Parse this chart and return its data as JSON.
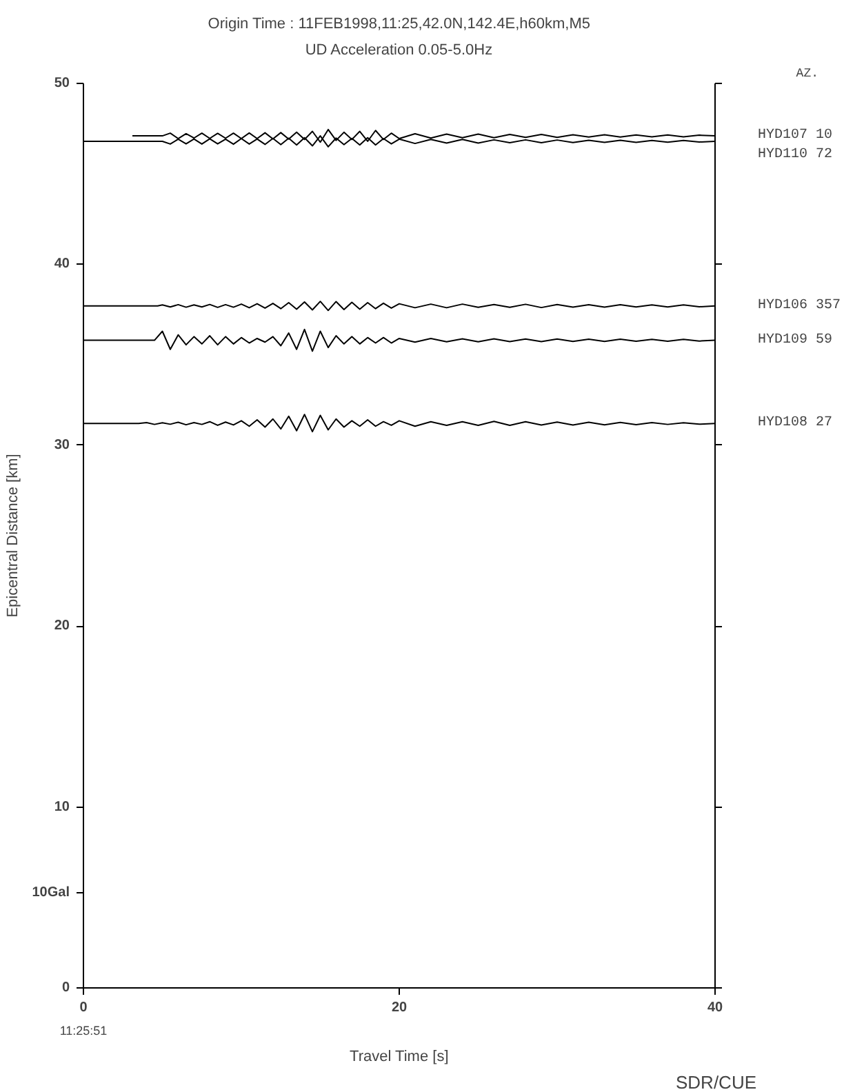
{
  "chart_data": {
    "type": "line",
    "title": "Origin Time : 11FEB1998,11:25,42.0N,142.4E,h60km,M5",
    "subtitle": "UD Acceleration 0.05-5.0Hz",
    "xlabel": "Travel Time [s]",
    "ylabel": "Epicentral Distance [km]",
    "xlim": [
      0,
      40
    ],
    "xticks": [
      0,
      20,
      40
    ],
    "ylim": [
      0,
      50
    ],
    "yticks": [
      0,
      10,
      20,
      30,
      40,
      50
    ],
    "grid": false,
    "marker": "none",
    "line_style": "solid",
    "annotations": [
      "AZ.",
      "10Gal",
      "11:25:51",
      "SDR/CUE"
    ],
    "series": [
      {
        "name": "HYD107 10",
        "color": "#000000",
        "x": [
          3.1,
          5,
          5.5,
          6,
          6.5,
          7,
          7.5,
          8,
          8.5,
          9,
          9.5,
          10,
          10.5,
          11,
          11.5,
          12,
          12.5,
          13,
          13.5,
          14,
          14.5,
          15,
          15.5,
          16,
          16.5,
          17,
          17.5,
          18,
          18.5,
          19,
          19.5,
          20,
          21,
          22,
          23,
          24,
          25,
          26,
          27,
          28,
          29,
          30,
          31,
          32,
          33,
          34,
          35,
          36,
          37,
          38,
          39,
          40
        ],
        "values": [
          47.1,
          47.1,
          47.25,
          46.95,
          47.22,
          46.98,
          47.25,
          46.96,
          47.24,
          46.97,
          47.25,
          46.95,
          47.26,
          46.95,
          47.27,
          46.93,
          47.28,
          46.92,
          47.3,
          46.9,
          47.35,
          46.75,
          47.45,
          46.85,
          47.3,
          46.9,
          47.35,
          46.8,
          47.4,
          46.9,
          47.25,
          46.95,
          47.22,
          46.98,
          47.2,
          47.0,
          47.2,
          47.0,
          47.18,
          47.02,
          47.18,
          47.02,
          47.16,
          47.04,
          47.16,
          47.04,
          47.15,
          47.05,
          47.15,
          47.05,
          47.14,
          47.1
        ]
      },
      {
        "name": "HYD110 72",
        "color": "#000000",
        "x": [
          0,
          5,
          5.5,
          6,
          6.5,
          7,
          7.5,
          8,
          8.5,
          9,
          9.5,
          10,
          10.5,
          11,
          11.5,
          12,
          12.5,
          13,
          13.5,
          14,
          14.5,
          15,
          15.5,
          16,
          16.5,
          17,
          17.5,
          18,
          18.5,
          19,
          19.5,
          20,
          21,
          22,
          23,
          24,
          25,
          26,
          27,
          28,
          29,
          30,
          31,
          32,
          33,
          34,
          35,
          36,
          37,
          38,
          39,
          40
        ],
        "values": [
          46.8,
          46.8,
          46.65,
          46.92,
          46.66,
          46.93,
          46.65,
          46.94,
          46.66,
          46.92,
          46.64,
          46.95,
          46.65,
          46.93,
          46.63,
          46.96,
          46.62,
          46.97,
          46.6,
          47.0,
          46.55,
          47.1,
          46.5,
          46.98,
          46.62,
          46.96,
          46.6,
          47.0,
          46.6,
          46.95,
          46.66,
          46.92,
          46.68,
          46.9,
          46.7,
          46.9,
          46.7,
          46.88,
          46.72,
          46.88,
          46.72,
          46.87,
          46.73,
          46.86,
          46.74,
          46.86,
          46.74,
          46.85,
          46.75,
          46.85,
          46.76,
          46.8
        ]
      },
      {
        "name": "HYD106 357",
        "color": "#000000",
        "x": [
          0,
          4.7,
          5,
          5.5,
          6,
          6.5,
          7,
          7.5,
          8,
          8.5,
          9,
          9.5,
          10,
          10.5,
          11,
          11.5,
          12,
          12.5,
          13,
          13.5,
          14,
          14.5,
          15,
          15.5,
          16,
          16.5,
          17,
          17.5,
          18,
          18.5,
          19,
          19.5,
          20,
          21,
          22,
          23,
          24,
          25,
          26,
          27,
          28,
          29,
          30,
          31,
          32,
          33,
          34,
          35,
          36,
          37,
          38,
          39,
          40
        ],
        "values": [
          37.7,
          37.7,
          37.76,
          37.64,
          37.77,
          37.63,
          37.76,
          37.64,
          37.78,
          37.62,
          37.77,
          37.63,
          37.8,
          37.6,
          37.82,
          37.58,
          37.84,
          37.55,
          37.88,
          37.52,
          37.92,
          37.48,
          37.95,
          37.45,
          37.94,
          37.5,
          37.9,
          37.52,
          37.88,
          37.55,
          37.85,
          37.58,
          37.82,
          37.6,
          37.8,
          37.6,
          37.8,
          37.62,
          37.78,
          37.62,
          37.79,
          37.61,
          37.78,
          37.63,
          37.77,
          37.63,
          37.77,
          37.64,
          37.76,
          37.64,
          37.76,
          37.65,
          37.7
        ]
      },
      {
        "name": "HYD109 59",
        "color": "#000000",
        "x": [
          0,
          4.5,
          5,
          5.5,
          6,
          6.5,
          7,
          7.5,
          8,
          8.5,
          9,
          9.5,
          10,
          10.5,
          11,
          11.5,
          12,
          12.5,
          13,
          13.5,
          14,
          14.5,
          15,
          15.5,
          16,
          16.5,
          17,
          17.5,
          18,
          18.5,
          19,
          19.5,
          20,
          21,
          22,
          23,
          24,
          25,
          26,
          27,
          28,
          29,
          30,
          31,
          32,
          33,
          34,
          35,
          36,
          37,
          38,
          39,
          40
        ],
        "values": [
          35.8,
          35.8,
          36.3,
          35.3,
          36.1,
          35.55,
          36.0,
          35.6,
          36.05,
          35.55,
          36.0,
          35.6,
          35.95,
          35.65,
          35.9,
          35.7,
          36.0,
          35.5,
          36.2,
          35.3,
          36.4,
          35.2,
          36.3,
          35.4,
          36.05,
          35.6,
          36.0,
          35.6,
          35.95,
          35.65,
          35.95,
          35.65,
          35.9,
          35.7,
          35.9,
          35.72,
          35.88,
          35.72,
          35.88,
          35.73,
          35.87,
          35.73,
          35.87,
          35.74,
          35.86,
          35.74,
          35.86,
          35.75,
          35.85,
          35.75,
          35.85,
          35.76,
          35.8
        ]
      },
      {
        "name": "HYD108 27",
        "color": "#000000",
        "x": [
          0,
          3.5,
          4,
          4.5,
          5,
          5.5,
          6,
          6.5,
          7,
          7.5,
          8,
          8.5,
          9,
          9.5,
          10,
          10.5,
          11,
          11.5,
          12,
          12.5,
          13,
          13.5,
          14,
          14.5,
          15,
          15.5,
          16,
          16.5,
          17,
          17.5,
          18,
          18.5,
          19,
          19.5,
          20,
          21,
          22,
          23,
          24,
          25,
          26,
          27,
          28,
          29,
          30,
          31,
          32,
          33,
          34,
          35,
          36,
          37,
          38,
          39,
          40
        ],
        "values": [
          31.2,
          31.2,
          31.25,
          31.15,
          31.24,
          31.16,
          31.27,
          31.13,
          31.25,
          31.15,
          31.3,
          31.1,
          31.28,
          31.12,
          31.35,
          31.05,
          31.4,
          31.0,
          31.45,
          30.9,
          31.6,
          30.8,
          31.7,
          30.75,
          31.65,
          30.85,
          31.45,
          31.0,
          31.35,
          31.05,
          31.4,
          31.05,
          31.3,
          31.1,
          31.35,
          31.05,
          31.3,
          31.1,
          31.3,
          31.1,
          31.32,
          31.1,
          31.3,
          31.12,
          31.28,
          31.12,
          31.27,
          31.13,
          31.26,
          31.14,
          31.25,
          31.15,
          31.24,
          31.16,
          31.2
        ]
      }
    ]
  }
}
